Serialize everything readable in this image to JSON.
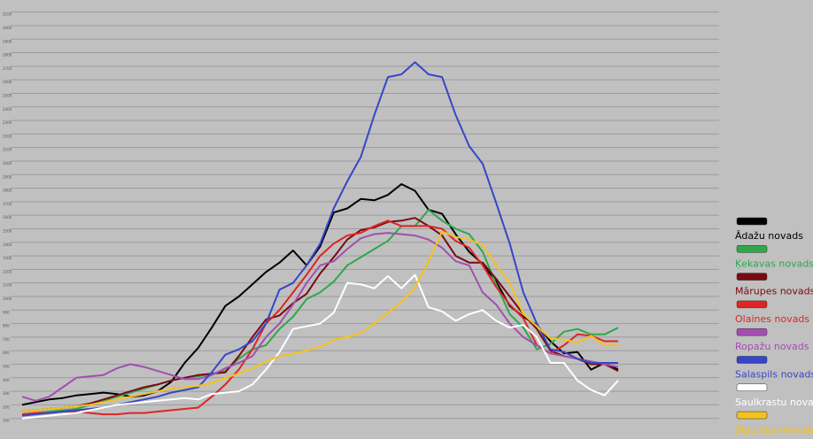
{
  "chart_data": {
    "type": "line",
    "categories": [
      null,
      null,
      null,
      null,
      null,
      null,
      null,
      null,
      null,
      null,
      null,
      null,
      null,
      null,
      null,
      null,
      null,
      null,
      null,
      null,
      null,
      null,
      null,
      null,
      null,
      null,
      null,
      null,
      null,
      null,
      null,
      null,
      null,
      null,
      null,
      null,
      null,
      null,
      null,
      null,
      null,
      null,
      null,
      null,
      null
    ],
    "ylim": [
      0,
      3150
    ],
    "yticks": [
      100,
      200,
      300,
      400,
      500,
      600,
      700,
      800,
      900,
      1000,
      1100,
      1200,
      1300,
      1400,
      1500,
      1600,
      1700,
      1800,
      1900,
      2000,
      2100,
      2200,
      2300,
      2400,
      2500,
      2600,
      2700,
      2800,
      2900,
      3000,
      3100
    ],
    "grid": true,
    "legend": "right",
    "series": [
      {
        "name": "Ādažu novads",
        "color": "#000000",
        "values": [
          200,
          220,
          240,
          250,
          270,
          280,
          290,
          280,
          260,
          270,
          300,
          370,
          510,
          620,
          770,
          930,
          1000,
          1090,
          1180,
          1250,
          1340,
          1230,
          1370,
          1620,
          1650,
          1720,
          1710,
          1750,
          1830,
          1780,
          1640,
          1610,
          1460,
          1330,
          1240,
          1110,
          930,
          850,
          790,
          670,
          580,
          590,
          460,
          510,
          460
        ]
      },
      {
        "name": "Ķekavas novads",
        "color": "#2ea84a",
        "values": [
          130,
          140,
          150,
          160,
          170,
          200,
          230,
          260,
          290,
          320,
          350,
          380,
          400,
          410,
          430,
          450,
          540,
          610,
          640,
          760,
          850,
          980,
          1030,
          1110,
          1230,
          1290,
          1350,
          1410,
          1520,
          1520,
          1640,
          1560,
          1500,
          1460,
          1330,
          1090,
          870,
          770,
          610,
          650,
          740,
          760,
          720,
          720,
          770
        ]
      },
      {
        "name": "Mārupes novads",
        "color": "#7a0a12",
        "values": [
          150,
          160,
          170,
          180,
          190,
          210,
          240,
          270,
          300,
          330,
          350,
          380,
          400,
          420,
          430,
          440,
          560,
          700,
          830,
          860,
          950,
          1020,
          1170,
          1290,
          1420,
          1490,
          1510,
          1550,
          1560,
          1580,
          1520,
          1450,
          1300,
          1250,
          1250,
          1130,
          1000,
          870,
          760,
          600,
          560,
          540,
          500,
          500,
          450
        ]
      },
      {
        "name": "Olaines novads",
        "color": "#e02424",
        "values": [
          130,
          140,
          140,
          150,
          150,
          140,
          130,
          130,
          140,
          140,
          150,
          160,
          170,
          180,
          260,
          350,
          460,
          610,
          800,
          900,
          1030,
          1160,
          1300,
          1390,
          1450,
          1470,
          1520,
          1560,
          1520,
          1520,
          1520,
          1500,
          1410,
          1360,
          1230,
          1070,
          940,
          840,
          640,
          580,
          640,
          720,
          710,
          670,
          670
        ]
      },
      {
        "name": "Ropažu novads",
        "color": "#a24fb0",
        "values": [
          260,
          230,
          260,
          330,
          400,
          410,
          420,
          470,
          500,
          480,
          450,
          420,
          390,
          390,
          420,
          470,
          510,
          560,
          700,
          800,
          940,
          1100,
          1230,
          1260,
          1350,
          1430,
          1460,
          1470,
          1460,
          1450,
          1420,
          1360,
          1260,
          1230,
          1030,
          940,
          800,
          700,
          640,
          580,
          560,
          540,
          520,
          500,
          480
        ]
      },
      {
        "name": "Salaspils novads",
        "color": "#3646c8",
        "values": [
          120,
          130,
          140,
          150,
          160,
          170,
          180,
          200,
          220,
          240,
          260,
          290,
          310,
          330,
          440,
          570,
          610,
          670,
          800,
          1050,
          1100,
          1230,
          1390,
          1650,
          1850,
          2030,
          2340,
          2620,
          2640,
          2730,
          2640,
          2620,
          2340,
          2110,
          1980,
          1690,
          1390,
          1030,
          800,
          610,
          590,
          540,
          510,
          510,
          510
        ]
      },
      {
        "name": "Saulkrastu novads",
        "color": "#ffffff",
        "values": [
          100,
          110,
          120,
          130,
          140,
          160,
          180,
          200,
          210,
          220,
          230,
          240,
          250,
          240,
          280,
          290,
          300,
          350,
          460,
          590,
          760,
          780,
          800,
          880,
          1100,
          1090,
          1060,
          1150,
          1060,
          1160,
          920,
          890,
          820,
          870,
          900,
          820,
          770,
          790,
          700,
          510,
          510,
          380,
          310,
          270,
          380
        ]
      },
      {
        "name": "Siguldas novads",
        "color": "#f5c21b",
        "values": [
          150,
          160,
          170,
          180,
          190,
          200,
          220,
          240,
          260,
          280,
          300,
          320,
          330,
          340,
          360,
          400,
          430,
          470,
          520,
          560,
          580,
          600,
          630,
          680,
          700,
          730,
          800,
          880,
          960,
          1070,
          1260,
          1480,
          1440,
          1420,
          1380,
          1230,
          1100,
          870,
          780,
          690,
          680,
          660,
          710,
          640,
          640
        ]
      }
    ]
  }
}
